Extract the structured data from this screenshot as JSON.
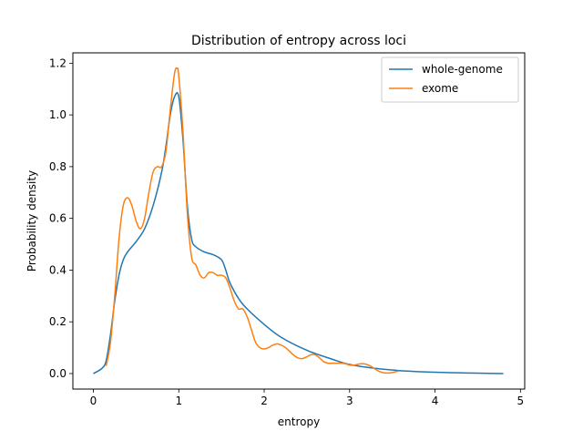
{
  "chart_data": {
    "type": "line",
    "title": "Distribution of entropy across loci",
    "xlabel": "entropy",
    "ylabel": "Probability density",
    "xlim": [
      -0.24,
      5.05
    ],
    "ylim": [
      -0.06,
      1.24
    ],
    "xticks": [
      0,
      1,
      2,
      3,
      4,
      5
    ],
    "xtick_labels": [
      "0",
      "1",
      "2",
      "3",
      "4",
      "5"
    ],
    "yticks": [
      0.0,
      0.2,
      0.4,
      0.6,
      0.8,
      1.0,
      1.2
    ],
    "ytick_labels": [
      "0.0",
      "0.2",
      "0.4",
      "0.6",
      "0.8",
      "1.0",
      "1.2"
    ],
    "grid": false,
    "legend_position": "top-right",
    "series": [
      {
        "name": "whole-genome",
        "color": "#1f77b4",
        "x": [
          0.0,
          0.1,
          0.15,
          0.2,
          0.25,
          0.3,
          0.35,
          0.4,
          0.5,
          0.6,
          0.7,
          0.8,
          0.85,
          0.9,
          0.95,
          1.0,
          1.05,
          1.1,
          1.15,
          1.2,
          1.3,
          1.4,
          1.5,
          1.55,
          1.6,
          1.7,
          1.8,
          2.0,
          2.2,
          2.5,
          2.8,
          3.0,
          3.3,
          3.6,
          4.0,
          4.4,
          4.8
        ],
        "y": [
          0.0,
          0.02,
          0.05,
          0.15,
          0.28,
          0.38,
          0.44,
          0.47,
          0.51,
          0.56,
          0.65,
          0.78,
          0.88,
          1.0,
          1.07,
          1.07,
          0.9,
          0.65,
          0.52,
          0.49,
          0.47,
          0.46,
          0.44,
          0.4,
          0.35,
          0.29,
          0.25,
          0.19,
          0.14,
          0.09,
          0.055,
          0.035,
          0.02,
          0.011,
          0.005,
          0.002,
          0.0
        ]
      },
      {
        "name": "exome",
        "color": "#ff7f0e",
        "x": [
          0.15,
          0.2,
          0.25,
          0.3,
          0.35,
          0.4,
          0.45,
          0.5,
          0.55,
          0.6,
          0.65,
          0.7,
          0.75,
          0.8,
          0.85,
          0.9,
          0.95,
          0.98,
          1.0,
          1.05,
          1.1,
          1.15,
          1.2,
          1.25,
          1.3,
          1.35,
          1.4,
          1.45,
          1.5,
          1.55,
          1.6,
          1.65,
          1.7,
          1.75,
          1.8,
          1.85,
          1.9,
          1.95,
          2.0,
          2.05,
          2.1,
          2.15,
          2.2,
          2.25,
          2.3,
          2.35,
          2.4,
          2.45,
          2.5,
          2.55,
          2.6,
          2.65,
          2.7,
          2.75,
          2.8,
          2.85,
          2.9,
          2.95,
          3.0,
          3.05,
          3.1,
          3.15,
          3.2,
          3.25,
          3.3,
          3.35,
          3.4,
          3.45,
          3.5,
          3.55,
          3.58
        ],
        "y": [
          0.03,
          0.12,
          0.3,
          0.52,
          0.65,
          0.68,
          0.65,
          0.59,
          0.56,
          0.6,
          0.7,
          0.78,
          0.8,
          0.8,
          0.86,
          1.02,
          1.16,
          1.18,
          1.15,
          0.93,
          0.62,
          0.45,
          0.42,
          0.38,
          0.37,
          0.39,
          0.39,
          0.38,
          0.38,
          0.37,
          0.33,
          0.28,
          0.25,
          0.25,
          0.22,
          0.17,
          0.12,
          0.1,
          0.095,
          0.1,
          0.11,
          0.115,
          0.11,
          0.1,
          0.085,
          0.07,
          0.06,
          0.058,
          0.065,
          0.073,
          0.072,
          0.06,
          0.045,
          0.04,
          0.04,
          0.04,
          0.04,
          0.038,
          0.033,
          0.032,
          0.036,
          0.038,
          0.035,
          0.028,
          0.017,
          0.008,
          0.003,
          0.002,
          0.004,
          0.008,
          0.01
        ]
      }
    ]
  }
}
